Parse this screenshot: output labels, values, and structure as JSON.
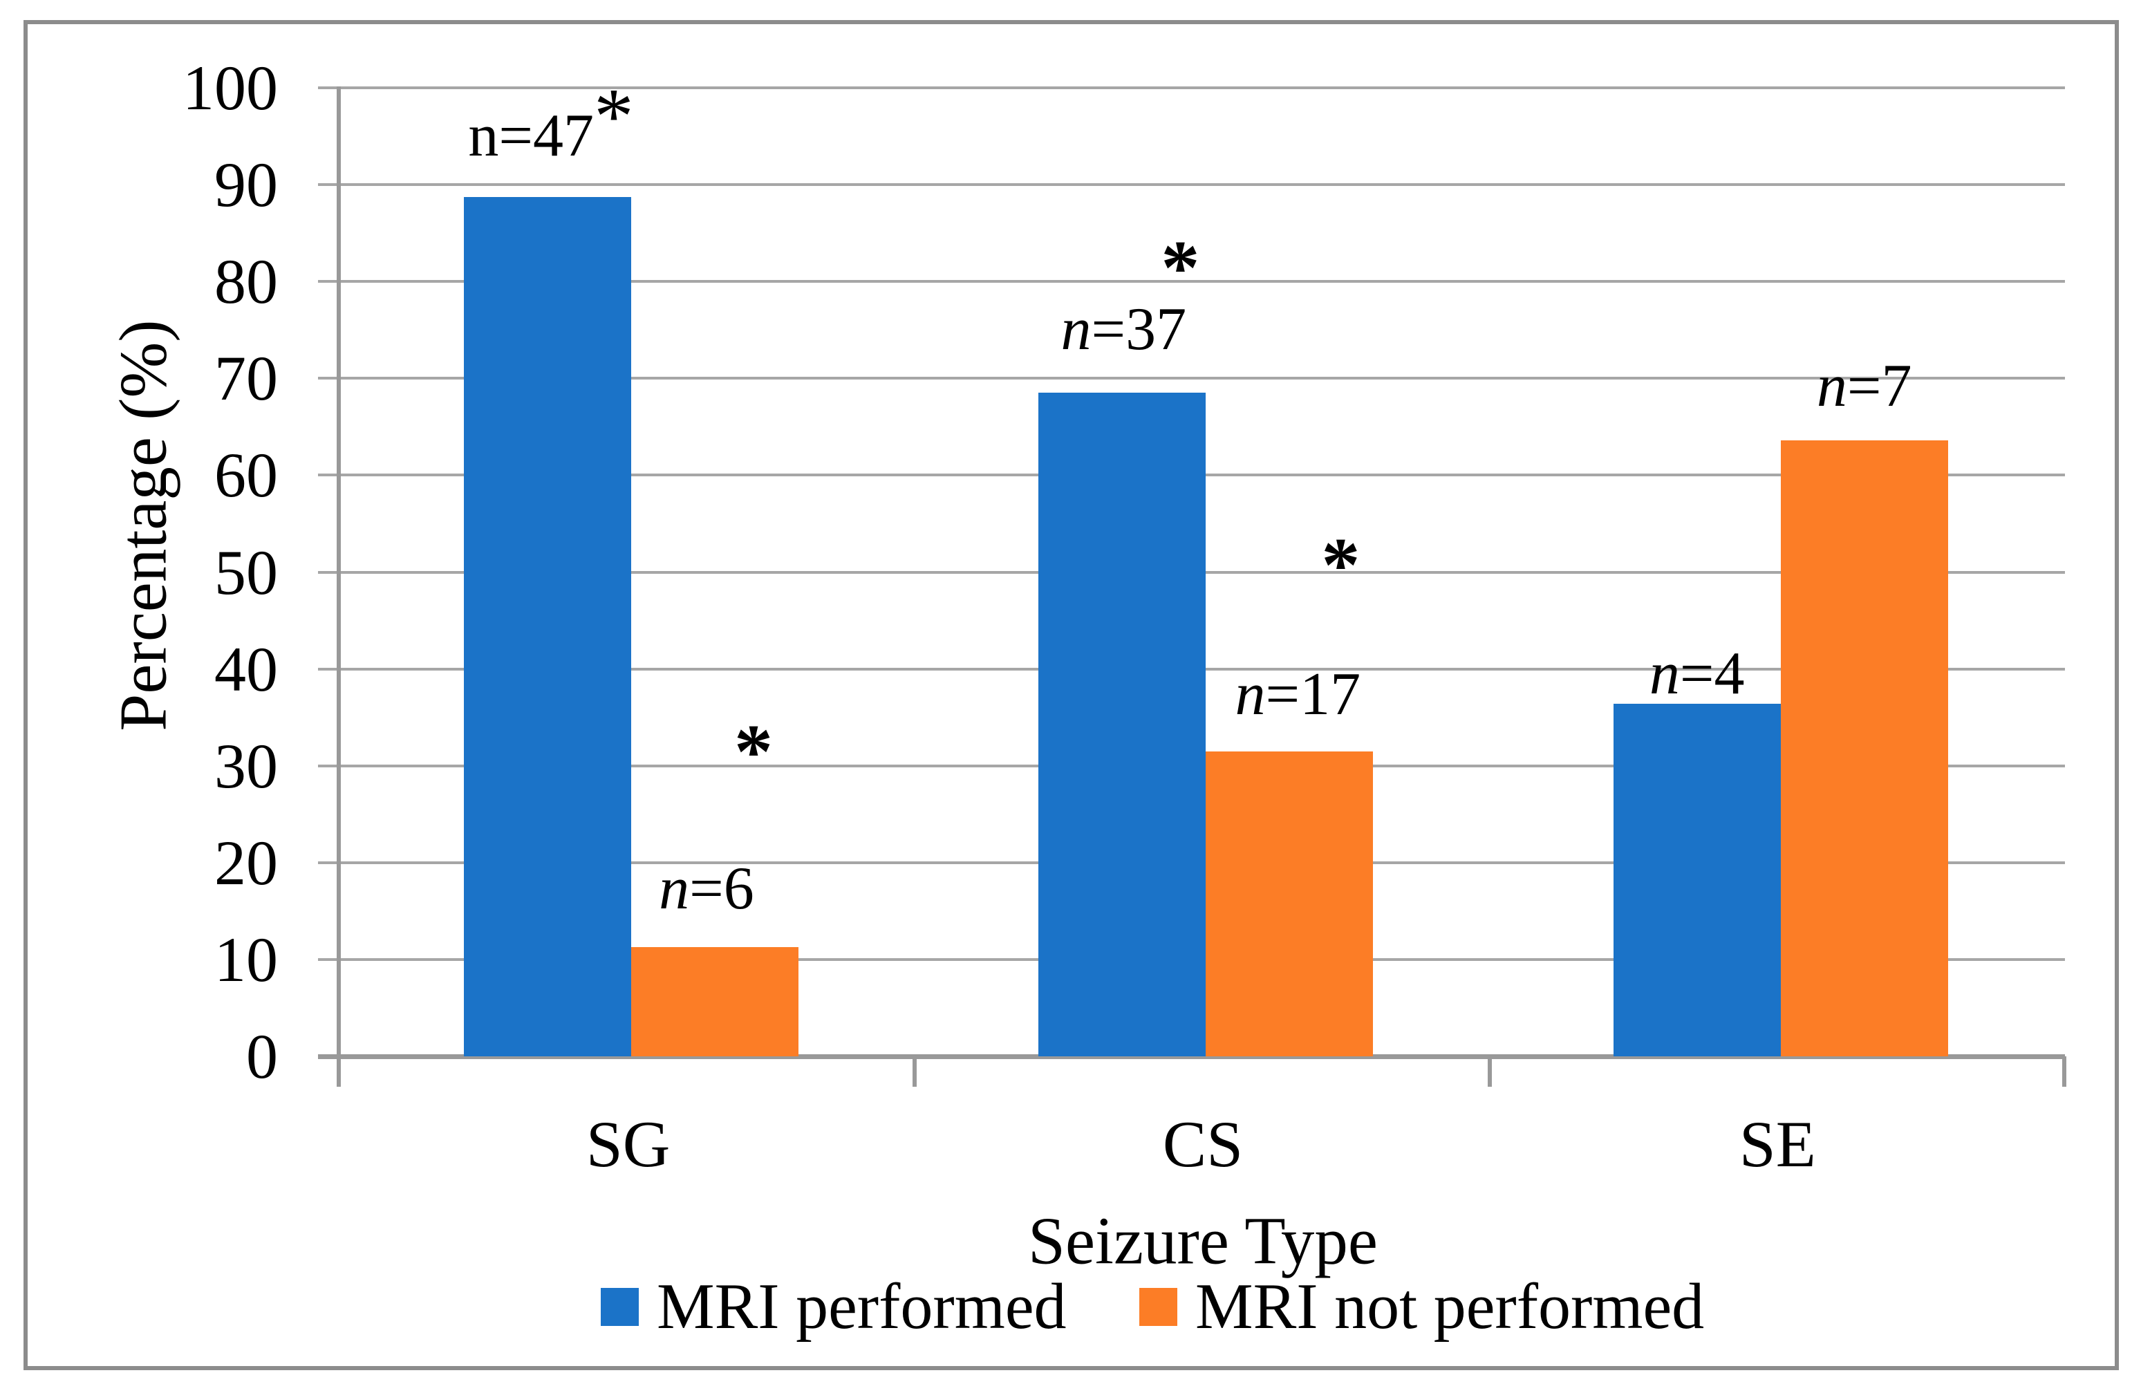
{
  "chart_data": {
    "type": "bar",
    "title": "",
    "categories": [
      "SG",
      "CS",
      "SE"
    ],
    "series": [
      {
        "name": "MRI performed",
        "color": "#1B73C8",
        "values": [
          88.7,
          68.5,
          36.4
        ],
        "counts": [
          47,
          37,
          4
        ]
      },
      {
        "name": "MRI not performed",
        "color": "#FC7D26",
        "values": [
          11.3,
          31.5,
          63.6
        ],
        "counts": [
          6,
          17,
          7
        ]
      }
    ],
    "xlabel": "Seizure Type",
    "ylabel": "Percentage (%)",
    "ylim": [
      0,
      100
    ],
    "ytick_step": 10,
    "ytick_labels": [
      "100",
      "90",
      "80",
      "70",
      "60",
      "50",
      "40",
      "30",
      "20",
      "10",
      "0"
    ],
    "grid": "horizontal",
    "legend_position": "bottom",
    "annotations": [
      {
        "label": "n=47",
        "italic_n": false,
        "sup_star": true,
        "star": false,
        "cat": 0,
        "series": 0,
        "dx": 5,
        "y_pct": 95.0
      },
      {
        "label": "n=6",
        "italic_n": true,
        "sup_star": false,
        "star": false,
        "cat": 0,
        "series": 1,
        "dx": -12,
        "y_pct": 17.3
      },
      {
        "label": "*",
        "italic_n": false,
        "sup_star": false,
        "star": true,
        "cat": 0,
        "series": 1,
        "dx": 56,
        "y_pct": 33.4
      },
      {
        "label": "n=37",
        "italic_n": true,
        "sup_star": false,
        "star": false,
        "cat": 1,
        "series": 0,
        "dx": 2,
        "y_pct": 75.0
      },
      {
        "label": "*",
        "italic_n": false,
        "sup_star": false,
        "star": true,
        "cat": 1,
        "series": 0,
        "dx": 84,
        "y_pct": 83.4
      },
      {
        "label": "n=17",
        "italic_n": true,
        "sup_star": false,
        "star": false,
        "cat": 1,
        "series": 1,
        "dx": 12,
        "y_pct": 37.3
      },
      {
        "label": "*",
        "italic_n": false,
        "sup_star": false,
        "star": true,
        "cat": 1,
        "series": 1,
        "dx": 74,
        "y_pct": 52.7
      },
      {
        "label": "n=4",
        "italic_n": true,
        "sup_star": false,
        "star": false,
        "cat": 2,
        "series": 0,
        "dx": 0,
        "y_pct": 39.5
      },
      {
        "label": "n=7",
        "italic_n": true,
        "sup_star": false,
        "star": false,
        "cat": 2,
        "series": 1,
        "dx": 0,
        "y_pct": 69.2
      }
    ],
    "colors": {
      "gridline": "#A6A6A6",
      "axis": "#999999",
      "frame": "#8C8C8C",
      "text": "#000000"
    }
  }
}
